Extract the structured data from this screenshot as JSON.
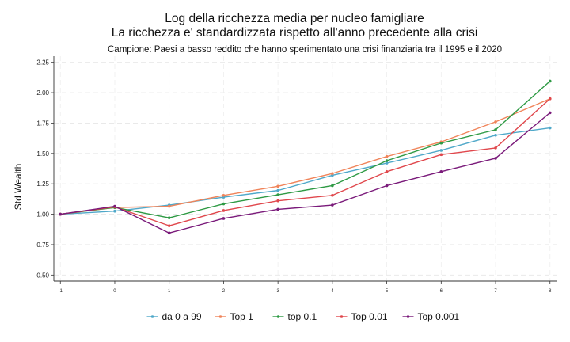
{
  "chart_data": {
    "type": "line",
    "title": [
      "Log della ricchezza media per nucleo famigliare",
      "La ricchezza e' standardizzata rispetto all'anno precedente alla crisi"
    ],
    "subtitle": "Campione: Paesi a basso reddito che hanno sperimentato una crisi finanziaria tra il 1995 e il 2020",
    "ylabel": "Std Wealth",
    "xlabel": "",
    "x": [
      -1,
      0,
      1,
      2,
      3,
      4,
      5,
      6,
      7,
      8
    ],
    "xticks": [
      "-1",
      "0",
      "1",
      "2",
      "3",
      "4",
      "5",
      "6",
      "7",
      "8"
    ],
    "ylim": [
      0.45,
      2.3
    ],
    "yticks": [
      "0.50",
      "0.75",
      "1.00",
      "1.25",
      "1.50",
      "1.75",
      "2.00",
      "2.25"
    ],
    "grid": true,
    "legend_position": "bottom",
    "series": [
      {
        "name": "da 0 a 99",
        "color": "#4fa8c9",
        "values": [
          1.0,
          1.025,
          1.075,
          1.14,
          1.195,
          1.32,
          1.42,
          1.525,
          1.65,
          1.71
        ]
      },
      {
        "name": "Top 1",
        "color": "#f0845a",
        "values": [
          1.0,
          1.055,
          1.065,
          1.155,
          1.23,
          1.335,
          1.475,
          1.595,
          1.76,
          1.95
        ]
      },
      {
        "name": "top 0.1",
        "color": "#2e9a44",
        "values": [
          1.0,
          1.055,
          0.97,
          1.085,
          1.16,
          1.235,
          1.44,
          1.585,
          1.695,
          2.095
        ]
      },
      {
        "name": "Top 0.01",
        "color": "#e0474c",
        "values": [
          1.0,
          1.06,
          0.905,
          1.03,
          1.11,
          1.155,
          1.35,
          1.49,
          1.545,
          1.95
        ]
      },
      {
        "name": "Top 0.001",
        "color": "#7a1a7a",
        "values": [
          1.0,
          1.065,
          0.845,
          0.965,
          1.04,
          1.075,
          1.235,
          1.35,
          1.46,
          1.835
        ]
      }
    ]
  }
}
